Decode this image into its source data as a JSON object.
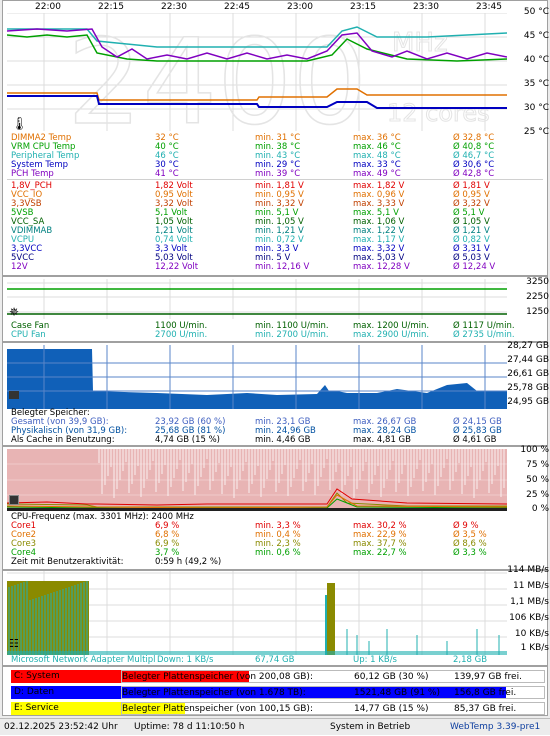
{
  "time_axis": [
    "22:00",
    "22:15",
    "22:30",
    "22:45",
    "23:00",
    "23:15",
    "23:30",
    "23:45"
  ],
  "temp_axis": [
    "50 °C",
    "45 °C",
    "40 °C",
    "35 °C",
    "30 °C",
    "25 °C"
  ],
  "watermark": {
    "big": "2400",
    "mhz": "MHz",
    "cores": "12 cores"
  },
  "colors": {
    "orange": "#e07000",
    "teal": "#20b0b0",
    "cyan": "#00b8b8",
    "green": "#00a000",
    "purple": "#8000c0",
    "blue": "#0000c0",
    "red": "#e00000",
    "brown": "#c04000",
    "darkred": "#a00000",
    "olive": "#8a8a00"
  },
  "temps": [
    {
      "name": "DIMMA2 Temp",
      "cur": "32 °C",
      "min": "min. 31 °C",
      "max": "max. 36 °C",
      "avg": "Ø 32,8 °C",
      "color": "#e07000"
    },
    {
      "name": "VRM CPU Temp",
      "cur": "40 °C",
      "min": "min. 38 °C",
      "max": "max. 46 °C",
      "avg": "Ø 40,8 °C",
      "color": "#00a000"
    },
    {
      "name": "Peripheral Temp",
      "cur": "46 °C",
      "min": "min. 43 °C",
      "max": "max. 48 °C",
      "avg": "Ø 46,7 °C",
      "color": "#20b0b0"
    },
    {
      "name": "System Temp",
      "cur": "30 °C",
      "min": "min. 29 °C",
      "max": "max. 33 °C",
      "avg": "Ø 30,6 °C",
      "color": "#0000c0"
    },
    {
      "name": "PCH Temp",
      "cur": "41 °C",
      "min": "min. 39 °C",
      "max": "max. 49 °C",
      "avg": "Ø 42,8 °C",
      "color": "#8000c0"
    }
  ],
  "volts": [
    {
      "name": "1,8V_PCH",
      "cur": "1,82 Volt",
      "min": "min. 1,81 V",
      "max": "max. 1,82 V",
      "avg": "Ø 1,81 V",
      "color": "#e00000"
    },
    {
      "name": "VCC_IO",
      "cur": "0,95 Volt",
      "min": "min. 0,95 V",
      "max": "max. 0,96 V",
      "avg": "Ø 0,95 V",
      "color": "#e07000"
    },
    {
      "name": "3,3VSB",
      "cur": "3,32 Volt",
      "min": "min. 3,32 V",
      "max": "max. 3,33 V",
      "avg": "Ø 3,32 V",
      "color": "#c04000"
    },
    {
      "name": "5VSB",
      "cur": "5,1 Volt",
      "min": "min. 5,1 V",
      "max": "max. 5,1 V",
      "avg": "Ø 5,1 V",
      "color": "#00a000"
    },
    {
      "name": "VCC_SA",
      "cur": "1,05 Volt",
      "min": "min. 1,05 V",
      "max": "max. 1,06 V",
      "avg": "Ø 1,05 V",
      "color": "#006000"
    },
    {
      "name": "VDIMMAB",
      "cur": "1,21 Volt",
      "min": "min. 1,21 V",
      "max": "max. 1,22 V",
      "avg": "Ø 1,21 V",
      "color": "#008080"
    },
    {
      "name": "VCPU",
      "cur": "0,74 Volt",
      "min": "min. 0,72 V",
      "max": "max. 1,17 V",
      "avg": "Ø 0,82 V",
      "color": "#20b0b0"
    },
    {
      "name": "3,3VCC",
      "cur": "3,3 Volt",
      "min": "min. 3,3 V",
      "max": "max. 3,32 V",
      "avg": "Ø 3,31 V",
      "color": "#0000c0"
    },
    {
      "name": "5VCC",
      "cur": "5,03 Volt",
      "min": "min. 5 V",
      "max": "max. 5,03 V",
      "avg": "Ø 5,03 V",
      "color": "#000080"
    },
    {
      "name": "12V",
      "cur": "12,22 Volt",
      "min": "min. 12,16 V",
      "max": "max. 12,28 V",
      "avg": "Ø 12,24 V",
      "color": "#8000c0"
    }
  ],
  "fan_axis": [
    "3250",
    "2250",
    "1250"
  ],
  "fans": [
    {
      "name": "Case Fan",
      "cur": "1100 U/min.",
      "min": "min. 1100 U/min.",
      "max": "max. 1200 U/min.",
      "avg": "Ø 1117 U/min.",
      "color": "#006000"
    },
    {
      "name": "CPU Fan",
      "cur": "2700 U/min.",
      "min": "min. 2700 U/min.",
      "max": "max. 2900 U/min.",
      "avg": "Ø 2735 U/min.",
      "color": "#20b0b0"
    }
  ],
  "mem_axis": [
    "28,27 GB",
    "27,44 GB",
    "26,61 GB",
    "25,78 GB",
    "24,95 GB"
  ],
  "mem": {
    "title": "Belegter Speicher:",
    "rows": [
      {
        "name": "Gesamt (von 39,9 GB):",
        "cur": "23,92 GB (60 %)",
        "min": "min. 23,1 GB",
        "max": "max. 26,67 GB",
        "avg": "Ø 24,15 GB",
        "color": "#4060c0"
      },
      {
        "name": "Physikalisch (von 31,9 GB):",
        "cur": "25,68 GB (81 %)",
        "min": "min. 24,96 GB",
        "max": "max. 28,24 GB",
        "avg": "Ø 25,83 GB",
        "color": "#0050a0"
      },
      {
        "name": "Als Cache in Benutzung:",
        "cur": "4,74 GB (15 %)",
        "min": "min. 4,46 GB",
        "max": "max. 4,81 GB",
        "avg": "Ø 4,61 GB",
        "color": "#000000"
      }
    ]
  },
  "cpu_axis": [
    "100 %",
    "75 %",
    "50 %",
    "25 %",
    "0 %"
  ],
  "cpu": {
    "freq": "CPU-Frequenz (max. 3301 MHz): 2400 MHz",
    "cores": [
      {
        "name": "Core1",
        "cur": "6,9 %",
        "min": "min. 3,3 %",
        "max": "max. 30,2 %",
        "avg": "Ø 9 %",
        "color": "#e00000"
      },
      {
        "name": "Core2",
        "cur": "6,8 %",
        "min": "min. 0,4 %",
        "max": "max. 22,9 %",
        "avg": "Ø 3,5 %",
        "color": "#e07000"
      },
      {
        "name": "Core3",
        "cur": "6,9 %",
        "min": "min. 2,3 %",
        "max": "max. 37,7 %",
        "avg": "Ø 8,6 %",
        "color": "#8a8a00"
      },
      {
        "name": "Core4",
        "cur": "3,7 %",
        "min": "min. 0,6 %",
        "max": "max. 22,7 %",
        "avg": "Ø 3,3 %",
        "color": "#00a000"
      }
    ],
    "activity": "Zeit mit Benutzeraktivität:",
    "activity_val": "0:59 h (49,2 %)"
  },
  "net_axis": [
    "114 MB/s",
    "11 MB/s",
    "1,1 MB/s",
    "106 KB/s",
    "10 KB/s",
    "1 KB/s"
  ],
  "net": {
    "adapter": "Microsoft Network Adapter Multipl",
    "down": "Down: 1 KB/s",
    "down_total": "67,74 GB",
    "up": "Up: 1 KB/s",
    "up_total": "2,18 GB"
  },
  "drives": [
    {
      "label": "C: System",
      "desc": "Belegter Plattenspeicher (von 200,08 GB):",
      "used": "60,12 GB (30 %)",
      "free": "139,97 GB frei.",
      "color": "#ff0000",
      "pct": 30
    },
    {
      "label": "D: Daten",
      "desc": "Belegter Plattenspeicher (von 1.678 TB):",
      "used": "1521,48 GB (91 %)",
      "free": "156,8 GB frei.",
      "color": "#0000ff",
      "pct": 91
    },
    {
      "label": "E: Service",
      "desc": "Belegter Plattenspeicher (von 100,15 GB):",
      "used": "14,77 GB (15 %)",
      "free": "85,37 GB frei.",
      "color": "#ffff00",
      "pct": 15
    }
  ],
  "status": {
    "datetime": "02.12.2025 23:52:42 Uhr",
    "uptime": "Uptime: 78 d 11:10:50 h",
    "state": "System in Betrieb",
    "app": "WebTemp 3.39-pre1"
  }
}
